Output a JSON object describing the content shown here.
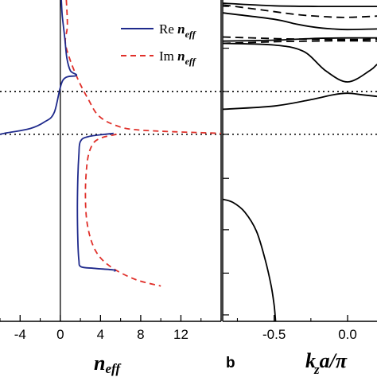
{
  "chart_data": [
    {
      "type": "line",
      "panel": "a",
      "xlabel_main": "n",
      "xlabel_sub": "eff",
      "xlim": [
        -6,
        16
      ],
      "x_ticks": [
        -4,
        0,
        4,
        8,
        12
      ],
      "y_range": [
        0,
        1
      ],
      "grid": false,
      "legend_placement": "top-right",
      "legend": [
        {
          "main": "Re ",
          "sub": "eff",
          "var": "n",
          "color": "#1f2a8c",
          "style": "solid"
        },
        {
          "main": "Im ",
          "sub": "eff",
          "var": "n",
          "color": "#e0302a",
          "style": "dashed"
        }
      ],
      "series": [
        {
          "name": "Re n_eff",
          "color": "#1f2a8c",
          "style": "solid",
          "points": [
            [
              0.1,
              0.0
            ],
            [
              0.2,
              0.05
            ],
            [
              0.45,
              0.12
            ],
            [
              0.65,
              0.18
            ],
            [
              1.0,
              0.22
            ],
            [
              1.6,
              0.235
            ],
            [
              0.25,
              0.25
            ],
            [
              -0.6,
              0.35
            ],
            [
              -1.6,
              0.38
            ],
            [
              -3.0,
              0.4
            ],
            [
              -5.6,
              0.415
            ],
            [
              -6.0,
              0.418
            ]
          ],
          "points_lower": [
            [
              5.3,
              0.415
            ],
            [
              2.8,
              0.425
            ],
            [
              2.0,
              0.44
            ],
            [
              1.85,
              0.48
            ],
            [
              1.75,
              0.55
            ],
            [
              1.7,
              0.65
            ],
            [
              1.75,
              0.75
            ],
            [
              1.85,
              0.81
            ],
            [
              2.05,
              0.83
            ],
            [
              3.3,
              0.835
            ],
            [
              5.3,
              0.84
            ],
            [
              5.4,
              0.845
            ]
          ]
        },
        {
          "name": "Im n_eff",
          "color": "#e0302a",
          "style": "dashed",
          "points_upper": [
            [
              0.6,
              0.0
            ],
            [
              0.7,
              0.08
            ],
            [
              0.5,
              0.13
            ],
            [
              0.9,
              0.18
            ],
            [
              1.8,
              0.25
            ],
            [
              2.8,
              0.31
            ],
            [
              3.8,
              0.36
            ],
            [
              5.5,
              0.39
            ],
            [
              8.0,
              0.405
            ],
            [
              16.0,
              0.415
            ]
          ],
          "points_lower": [
            [
              5.6,
              0.418
            ],
            [
              4.0,
              0.43
            ],
            [
              3.2,
              0.45
            ],
            [
              2.7,
              0.5
            ],
            [
              2.5,
              0.6
            ],
            [
              2.7,
              0.7
            ],
            [
              3.5,
              0.78
            ],
            [
              5.0,
              0.83
            ],
            [
              7.5,
              0.87
            ],
            [
              10.0,
              0.89
            ]
          ]
        }
      ],
      "reference_lines": [
        {
          "type": "horizontal",
          "style": "dotted",
          "position": 0.285
        },
        {
          "type": "horizontal",
          "style": "dotted",
          "position": 0.418
        },
        {
          "type": "vertical",
          "style": "solid",
          "x": 0
        }
      ]
    },
    {
      "type": "line",
      "panel": "b",
      "panel_label": "b",
      "xlabel_main": "k",
      "xlabel_sub": "z",
      "xlabel_rest": "a/π",
      "xlim": [
        -0.85,
        0.2
      ],
      "x_ticks": [
        "-0.5",
        "0.0"
      ],
      "x_tick_values": [
        -0.5,
        0.0
      ],
      "y_range": [
        0,
        1
      ],
      "grid": false,
      "series": [
        {
          "name": "",
          "style": "solid",
          "color": "#000000",
          "points": [
            [
              -0.85,
              0.01
            ],
            [
              -0.5,
              0.018
            ],
            [
              -0.2,
              0.02
            ],
            [
              0.0,
              0.02
            ],
            [
              0.2,
              0.02
            ]
          ]
        },
        {
          "name": "",
          "style": "dashed",
          "color": "#000000",
          "points": [
            [
              -0.85,
              0.015
            ],
            [
              -0.6,
              0.03
            ],
            [
              -0.35,
              0.045
            ],
            [
              -0.15,
              0.052
            ],
            [
              0.0,
              0.054
            ],
            [
              0.2,
              0.05
            ]
          ]
        },
        {
          "name": "",
          "style": "solid",
          "color": "#000000",
          "points": [
            [
              -0.85,
              0.04
            ],
            [
              -0.5,
              0.06
            ],
            [
              -0.35,
              0.075
            ],
            [
              -0.22,
              0.085
            ],
            [
              -0.1,
              0.09
            ],
            [
              0.0,
              0.092
            ],
            [
              0.2,
              0.09
            ]
          ]
        },
        {
          "name": "",
          "style": "dashed",
          "color": "#000000",
          "points": [
            [
              -0.85,
              0.115
            ],
            [
              -0.5,
              0.12
            ],
            [
              -0.25,
              0.122
            ],
            [
              0.0,
              0.123
            ],
            [
              0.2,
              0.122
            ]
          ]
        },
        {
          "name": "",
          "style": "dashed",
          "color": "#000000",
          "points": [
            [
              -0.85,
              0.135
            ],
            [
              -0.5,
              0.13
            ],
            [
              -0.25,
              0.128
            ],
            [
              0.0,
              0.127
            ],
            [
              0.2,
              0.128
            ]
          ]
        },
        {
          "name": "",
          "style": "solid",
          "color": "#000000",
          "points": [
            [
              -0.85,
              0.128
            ],
            [
              -0.5,
              0.125
            ],
            [
              -0.25,
              0.12
            ],
            [
              0.0,
              0.118
            ],
            [
              0.2,
              0.118
            ]
          ]
        },
        {
          "name": "",
          "style": "solid",
          "color": "#000000",
          "points": [
            [
              -0.85,
              0.135
            ],
            [
              -0.5,
              0.14
            ],
            [
              -0.3,
              0.16
            ],
            [
              -0.15,
              0.22
            ],
            [
              0.0,
              0.255
            ],
            [
              0.15,
              0.22
            ],
            [
              0.2,
              0.2
            ]
          ]
        },
        {
          "name": "",
          "style": "solid",
          "color": "#000000",
          "points": [
            [
              -0.85,
              0.34
            ],
            [
              -0.5,
              0.33
            ],
            [
              -0.25,
              0.31
            ],
            [
              -0.1,
              0.295
            ],
            [
              0.0,
              0.29
            ],
            [
              0.1,
              0.295
            ],
            [
              0.2,
              0.3
            ]
          ]
        },
        {
          "name": "",
          "style": "solid",
          "color": "#000000",
          "points": [
            [
              -0.85,
              0.62
            ],
            [
              -0.78,
              0.63
            ],
            [
              -0.7,
              0.66
            ],
            [
              -0.62,
              0.72
            ],
            [
              -0.56,
              0.81
            ],
            [
              -0.52,
              0.89
            ],
            [
              -0.5,
              0.95
            ],
            [
              -0.49,
              1.0
            ]
          ]
        }
      ],
      "reference_lines": [
        {
          "type": "horizontal",
          "style": "dotted",
          "position": 0.285
        },
        {
          "type": "horizontal",
          "style": "dotted",
          "position": 0.418
        }
      ]
    }
  ]
}
